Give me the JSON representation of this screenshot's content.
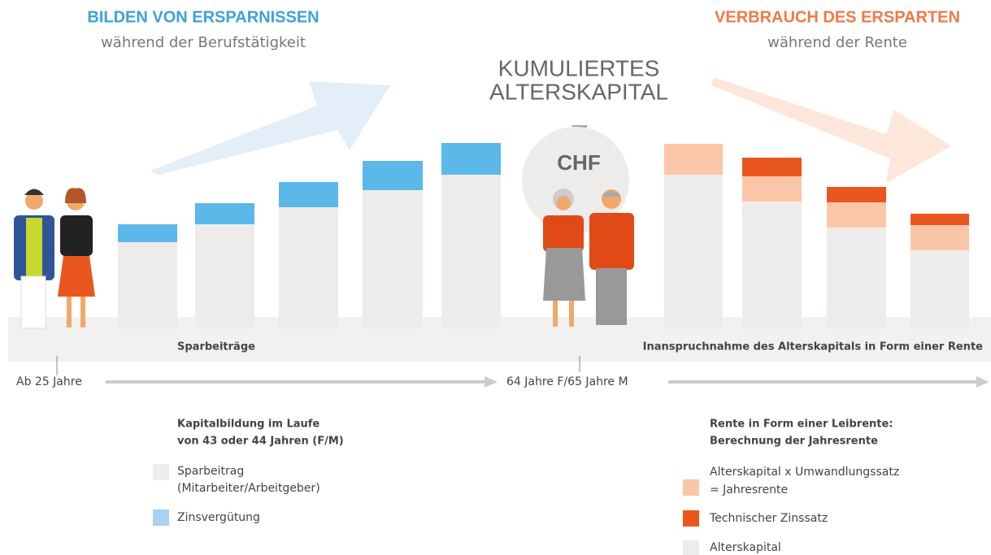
{
  "left": {
    "title": "BILDEN VON ERSPARNISSEN",
    "subtitle": "während der Berufstätigkeit"
  },
  "right": {
    "title": "VERBRAUCH DES ERSPARTEN",
    "subtitle": "während der Rente"
  },
  "center": {
    "title_lines": [
      "KUMULIERTES",
      "ALTERSKAPITAL"
    ],
    "currency": "CHF"
  },
  "phases": {
    "saving": "Sparbeiträge",
    "drawing": "Inanspruchnahme des Alterskapitals in Form einer Rente"
  },
  "timeline": {
    "start": "Ab 25 Jahre",
    "retirement": "64 Jahre F/65 Jahre M"
  },
  "legend_left": {
    "title_lines": [
      "Kapitalbildung im Laufe",
      "von 43 oder 44 Jahren (F/M)"
    ],
    "items": [
      {
        "lines": [
          "Sparbeitrag",
          "(Mitarbeiter/Arbeitgeber)"
        ]
      },
      {
        "lines": [
          "Zinsvergütung"
        ]
      }
    ]
  },
  "legend_right": {
    "title_lines": [
      "Rente in Form einer Leibrente:",
      "Berechnung der Jahresrente"
    ],
    "items": [
      {
        "lines": [
          "Alterskapital x Umwandlungssatz",
          "= Jahresrente"
        ]
      },
      {
        "lines": [
          "Technischer Zinssatz"
        ]
      },
      {
        "lines": [
          "Alterskapital"
        ]
      }
    ]
  }
}
